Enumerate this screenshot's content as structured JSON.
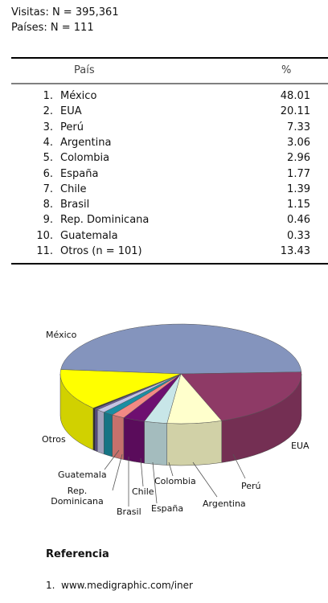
{
  "header": {
    "visits": "Visitas: N = 395,361",
    "countries": "Países: N = 111"
  },
  "table": {
    "columns": [
      "País",
      "%"
    ],
    "rows": [
      [
        "1.",
        "México",
        48.01
      ],
      [
        "2.",
        "EUA",
        20.11
      ],
      [
        "3.",
        "Perú",
        7.33
      ],
      [
        "4.",
        "Argentina",
        3.06
      ],
      [
        "5.",
        "Colombia",
        2.96
      ],
      [
        "6.",
        "España",
        1.77
      ],
      [
        "7.",
        "Chile",
        1.39
      ],
      [
        "8.",
        "Brasil",
        1.15
      ],
      [
        "9.",
        "Rep. Dominicana",
        0.46
      ],
      [
        "10.",
        "Guatemala",
        0.33
      ],
      [
        "11.",
        "Otros (n = 101)",
        13.43
      ]
    ]
  },
  "chart_data": {
    "type": "pie",
    "categories": [
      "México",
      "EUA",
      "Perú",
      "Argentina",
      "Colombia",
      "España",
      "Chile",
      "Brasil",
      "Rep. Dominicana",
      "Guatemala",
      "Otros"
    ],
    "values": [
      48.01,
      20.11,
      7.33,
      3.06,
      2.96,
      1.77,
      1.39,
      1.15,
      0.46,
      0.33,
      13.43
    ],
    "colors": [
      "#8494bd",
      "#8e3a66",
      "#ffffcc",
      "#c8e6e8",
      "#6e0f70",
      "#f28a84",
      "#1b8ea2",
      "#c4c4e4",
      "#6a5a9c",
      "#333333",
      "#ffff00"
    ]
  },
  "references": {
    "title": "Referencia",
    "items": [
      [
        "1.",
        "www.medigraphic.com/iner"
      ]
    ]
  }
}
